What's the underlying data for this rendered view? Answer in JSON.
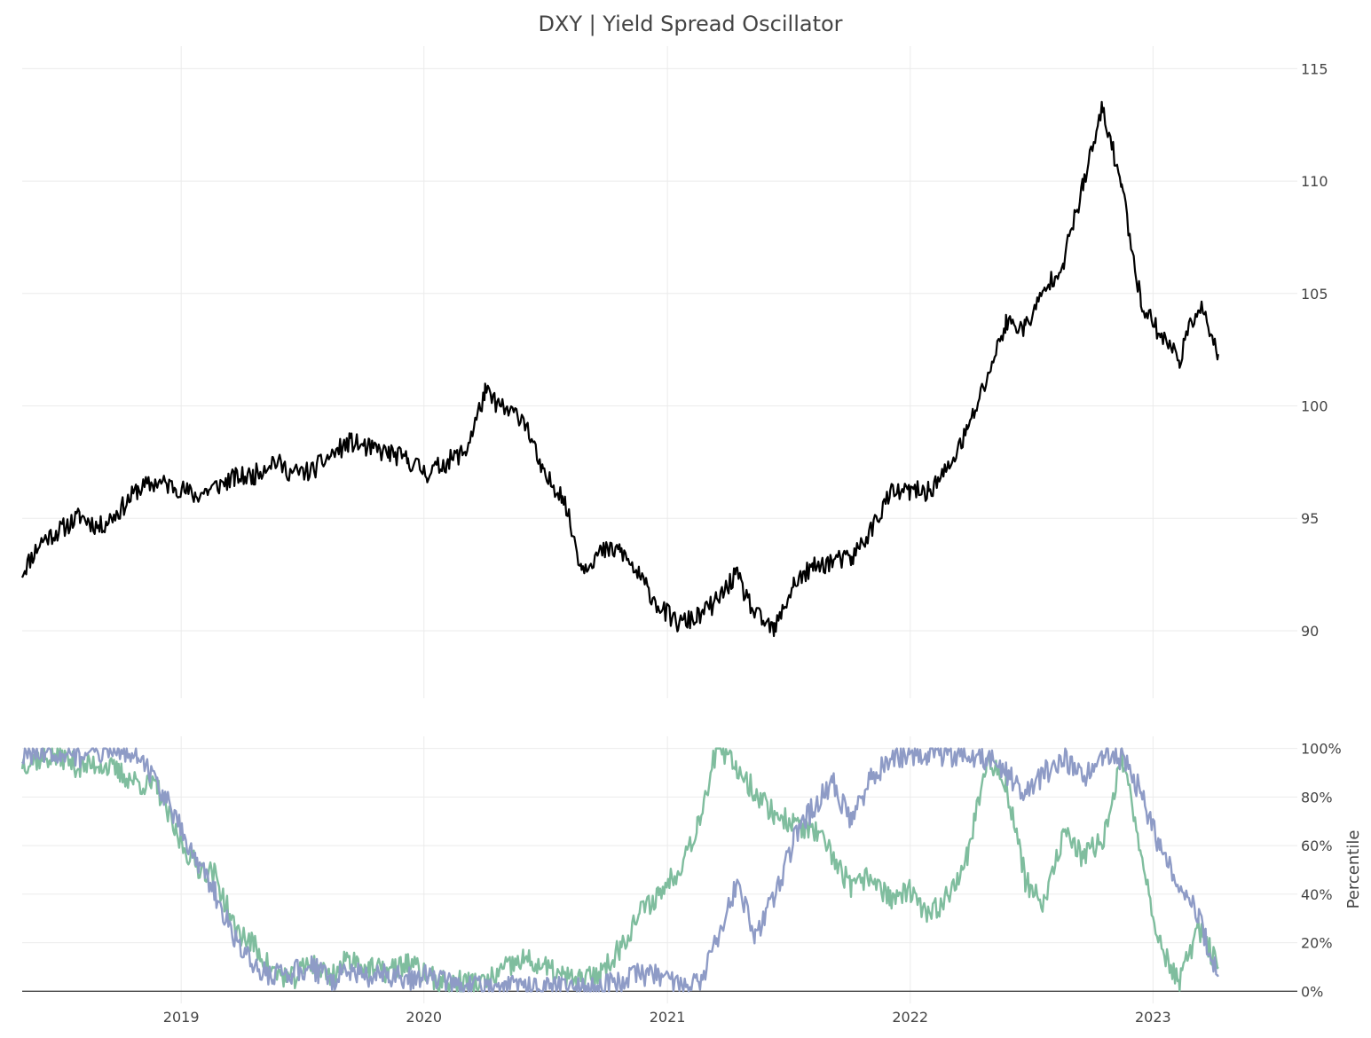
{
  "chart_data": {
    "type": "line",
    "title": "DXY | Yield Spread Oscillator",
    "x_axis": {
      "tick_labels": [
        "2019",
        "2020",
        "2021",
        "2022",
        "2023"
      ],
      "tick_dates": [
        "2019-01-01",
        "2020-01-01",
        "2021-01-01",
        "2022-01-01",
        "2023-01-01"
      ],
      "range": [
        "2018-05-07",
        "2023-08-06"
      ]
    },
    "panels": [
      {
        "id": "price",
        "ylabel": "",
        "ylim": [
          87,
          116
        ],
        "yticks": [
          90,
          95,
          100,
          105,
          110,
          115
        ],
        "ytick_labels": [
          "90",
          "95",
          "100",
          "105",
          "110",
          "115"
        ],
        "grid": true,
        "series": [
          {
            "color": "#000000",
            "points": [
              [
                "2018-05-07",
                92.6
              ],
              [
                "2018-06-05",
                94.0
              ],
              [
                "2018-07-04",
                94.5
              ],
              [
                "2018-08-02",
                95.1
              ],
              [
                "2018-08-31",
                94.6
              ],
              [
                "2018-09-29",
                95.3
              ],
              [
                "2018-10-28",
                96.3
              ],
              [
                "2018-11-26",
                96.6
              ],
              [
                "2018-12-25",
                96.4
              ],
              [
                "2019-01-23",
                96.0
              ],
              [
                "2019-02-21",
                96.4
              ],
              [
                "2019-03-22",
                96.8
              ],
              [
                "2019-04-20",
                96.9
              ],
              [
                "2019-05-19",
                97.6
              ],
              [
                "2019-06-17",
                97.0
              ],
              [
                "2019-07-16",
                97.1
              ],
              [
                "2019-08-14",
                97.8
              ],
              [
                "2019-09-12",
                98.4
              ],
              [
                "2019-10-11",
                98.1
              ],
              [
                "2019-11-09",
                97.9
              ],
              [
                "2019-12-08",
                97.6
              ],
              [
                "2020-01-06",
                97.0
              ],
              [
                "2020-02-04",
                97.5
              ],
              [
                "2020-03-04",
                98.0
              ],
              [
                "2020-04-02",
                100.6
              ],
              [
                "2020-05-01",
                99.8
              ],
              [
                "2020-05-30",
                99.5
              ],
              [
                "2020-06-28",
                96.9
              ],
              [
                "2020-07-27",
                96.1
              ],
              [
                "2020-08-25",
                92.8
              ],
              [
                "2020-09-23",
                93.5
              ],
              [
                "2020-10-22",
                93.6
              ],
              [
                "2020-11-20",
                92.4
              ],
              [
                "2020-12-19",
                91.1
              ],
              [
                "2021-01-17",
                90.3
              ],
              [
                "2021-02-15",
                90.6
              ],
              [
                "2021-03-16",
                91.3
              ],
              [
                "2021-04-14",
                92.5
              ],
              [
                "2021-05-13",
                90.7
              ],
              [
                "2021-06-11",
                90.0
              ],
              [
                "2021-07-10",
                92.1
              ],
              [
                "2021-08-08",
                92.8
              ],
              [
                "2021-09-06",
                93.1
              ],
              [
                "2021-10-05",
                93.2
              ],
              [
                "2021-11-03",
                94.5
              ],
              [
                "2021-12-02",
                96.1
              ],
              [
                "2021-12-31",
                96.2
              ],
              [
                "2022-01-29",
                96.2
              ],
              [
                "2022-02-27",
                97.2
              ],
              [
                "2022-03-28",
                98.9
              ],
              [
                "2022-04-26",
                101.2
              ],
              [
                "2022-05-25",
                103.7
              ],
              [
                "2022-06-23",
                103.5
              ],
              [
                "2022-07-22",
                105.1
              ],
              [
                "2022-08-20",
                106.5
              ],
              [
                "2022-09-18",
                109.8
              ],
              [
                "2022-10-17",
                113.2
              ],
              [
                "2022-11-15",
                109.8
              ],
              [
                "2022-12-14",
                104.6
              ],
              [
                "2023-01-12",
                103.2
              ],
              [
                "2023-02-10",
                102.1
              ],
              [
                "2023-03-11",
                104.6
              ],
              [
                "2023-04-09",
                102.3
              ]
            ]
          }
        ]
      },
      {
        "id": "oscillator",
        "ylabel": "Percentile",
        "ylim": [
          -0.05,
          1.05
        ],
        "yticks": [
          0,
          0.2,
          0.4,
          0.6,
          0.8,
          1.0
        ],
        "ytick_labels": [
          "0%",
          "20%",
          "40%",
          "60%",
          "80%",
          "100%"
        ],
        "grid": true,
        "series": [
          {
            "color": "#7fbd9e",
            "points": [
              [
                "2018-05-07",
                0.94
              ],
              [
                "2018-06-05",
                0.96
              ],
              [
                "2018-07-04",
                0.97
              ],
              [
                "2018-08-02",
                0.92
              ],
              [
                "2018-08-31",
                0.94
              ],
              [
                "2018-09-29",
                0.9
              ],
              [
                "2018-10-28",
                0.86
              ],
              [
                "2018-11-26",
                0.84
              ],
              [
                "2018-12-25",
                0.64
              ],
              [
                "2019-01-23",
                0.52
              ],
              [
                "2019-02-21",
                0.48
              ],
              [
                "2019-03-22",
                0.26
              ],
              [
                "2019-04-20",
                0.19
              ],
              [
                "2019-05-19",
                0.08
              ],
              [
                "2019-06-17",
                0.05
              ],
              [
                "2019-07-16",
                0.12
              ],
              [
                "2019-08-14",
                0.06
              ],
              [
                "2019-09-12",
                0.14
              ],
              [
                "2019-10-11",
                0.09
              ],
              [
                "2019-11-09",
                0.08
              ],
              [
                "2019-12-08",
                0.12
              ],
              [
                "2020-01-06",
                0.06
              ],
              [
                "2020-02-04",
                0.03
              ],
              [
                "2020-03-04",
                0.04
              ],
              [
                "2020-04-02",
                0.03
              ],
              [
                "2020-05-01",
                0.09
              ],
              [
                "2020-05-30",
                0.13
              ],
              [
                "2020-06-28",
                0.1
              ],
              [
                "2020-07-27",
                0.06
              ],
              [
                "2020-08-25",
                0.04
              ],
              [
                "2020-09-23",
                0.08
              ],
              [
                "2020-10-22",
                0.18
              ],
              [
                "2020-11-20",
                0.32
              ],
              [
                "2020-12-19",
                0.4
              ],
              [
                "2021-01-17",
                0.5
              ],
              [
                "2021-02-15",
                0.68
              ],
              [
                "2021-03-16",
                1.0
              ],
              [
                "2021-04-14",
                0.93
              ],
              [
                "2021-05-13",
                0.82
              ],
              [
                "2021-06-11",
                0.73
              ],
              [
                "2021-07-10",
                0.69
              ],
              [
                "2021-08-08",
                0.66
              ],
              [
                "2021-09-06",
                0.56
              ],
              [
                "2021-10-05",
                0.42
              ],
              [
                "2021-11-03",
                0.48
              ],
              [
                "2021-12-02",
                0.38
              ],
              [
                "2021-12-31",
                0.41
              ],
              [
                "2022-01-29",
                0.3
              ],
              [
                "2022-02-27",
                0.4
              ],
              [
                "2022-03-28",
                0.56
              ],
              [
                "2022-04-26",
                0.95
              ],
              [
                "2022-05-25",
                0.86
              ],
              [
                "2022-06-23",
                0.46
              ],
              [
                "2022-07-22",
                0.35
              ],
              [
                "2022-08-20",
                0.66
              ],
              [
                "2022-09-18",
                0.55
              ],
              [
                "2022-10-17",
                0.62
              ],
              [
                "2022-11-15",
                0.96
              ],
              [
                "2022-12-14",
                0.58
              ],
              [
                "2023-01-12",
                0.18
              ],
              [
                "2023-02-10",
                0.04
              ],
              [
                "2023-03-11",
                0.26
              ],
              [
                "2023-04-09",
                0.1
              ]
            ]
          },
          {
            "color": "#8e9bc6",
            "points": [
              [
                "2018-05-07",
                0.97
              ],
              [
                "2018-06-05",
                0.98
              ],
              [
                "2018-07-04",
                0.99
              ],
              [
                "2018-08-02",
                0.96
              ],
              [
                "2018-08-31",
                0.99
              ],
              [
                "2018-09-29",
                1.0
              ],
              [
                "2018-10-28",
                0.98
              ],
              [
                "2018-11-26",
                0.86
              ],
              [
                "2018-12-25",
                0.7
              ],
              [
                "2019-01-23",
                0.55
              ],
              [
                "2019-02-21",
                0.4
              ],
              [
                "2019-03-22",
                0.22
              ],
              [
                "2019-04-20",
                0.1
              ],
              [
                "2019-05-19",
                0.06
              ],
              [
                "2019-06-17",
                0.08
              ],
              [
                "2019-07-16",
                0.1
              ],
              [
                "2019-08-14",
                0.05
              ],
              [
                "2019-09-12",
                0.08
              ],
              [
                "2019-10-11",
                0.06
              ],
              [
                "2019-11-09",
                0.07
              ],
              [
                "2019-12-08",
                0.05
              ],
              [
                "2020-01-06",
                0.06
              ],
              [
                "2020-02-04",
                0.04
              ],
              [
                "2020-03-04",
                0.02
              ],
              [
                "2020-04-02",
                0.02
              ],
              [
                "2020-05-01",
                0.02
              ],
              [
                "2020-05-30",
                0.01
              ],
              [
                "2020-06-28",
                0.02
              ],
              [
                "2020-07-27",
                0.01
              ],
              [
                "2020-08-25",
                0.01
              ],
              [
                "2020-09-23",
                0.02
              ],
              [
                "2020-10-22",
                0.04
              ],
              [
                "2020-11-20",
                0.07
              ],
              [
                "2020-12-19",
                0.06
              ],
              [
                "2021-01-17",
                0.04
              ],
              [
                "2021-02-15",
                0.02
              ],
              [
                "2021-03-16",
                0.2
              ],
              [
                "2021-04-14",
                0.44
              ],
              [
                "2021-05-13",
                0.24
              ],
              [
                "2021-06-11",
                0.38
              ],
              [
                "2021-07-10",
                0.62
              ],
              [
                "2021-08-08",
                0.76
              ],
              [
                "2021-09-06",
                0.86
              ],
              [
                "2021-10-05",
                0.7
              ],
              [
                "2021-11-03",
                0.88
              ],
              [
                "2021-12-02",
                0.96
              ],
              [
                "2021-12-31",
                0.98
              ],
              [
                "2022-01-29",
                0.96
              ],
              [
                "2022-02-27",
                0.97
              ],
              [
                "2022-03-28",
                0.98
              ],
              [
                "2022-04-26",
                0.96
              ],
              [
                "2022-05-25",
                0.9
              ],
              [
                "2022-06-23",
                0.8
              ],
              [
                "2022-07-22",
                0.9
              ],
              [
                "2022-08-20",
                0.96
              ],
              [
                "2022-09-18",
                0.88
              ],
              [
                "2022-10-17",
                0.98
              ],
              [
                "2022-11-15",
                0.96
              ],
              [
                "2022-12-14",
                0.82
              ],
              [
                "2023-01-12",
                0.58
              ],
              [
                "2023-02-10",
                0.44
              ],
              [
                "2023-03-11",
                0.3
              ],
              [
                "2023-04-09",
                0.06
              ]
            ]
          }
        ]
      }
    ]
  }
}
